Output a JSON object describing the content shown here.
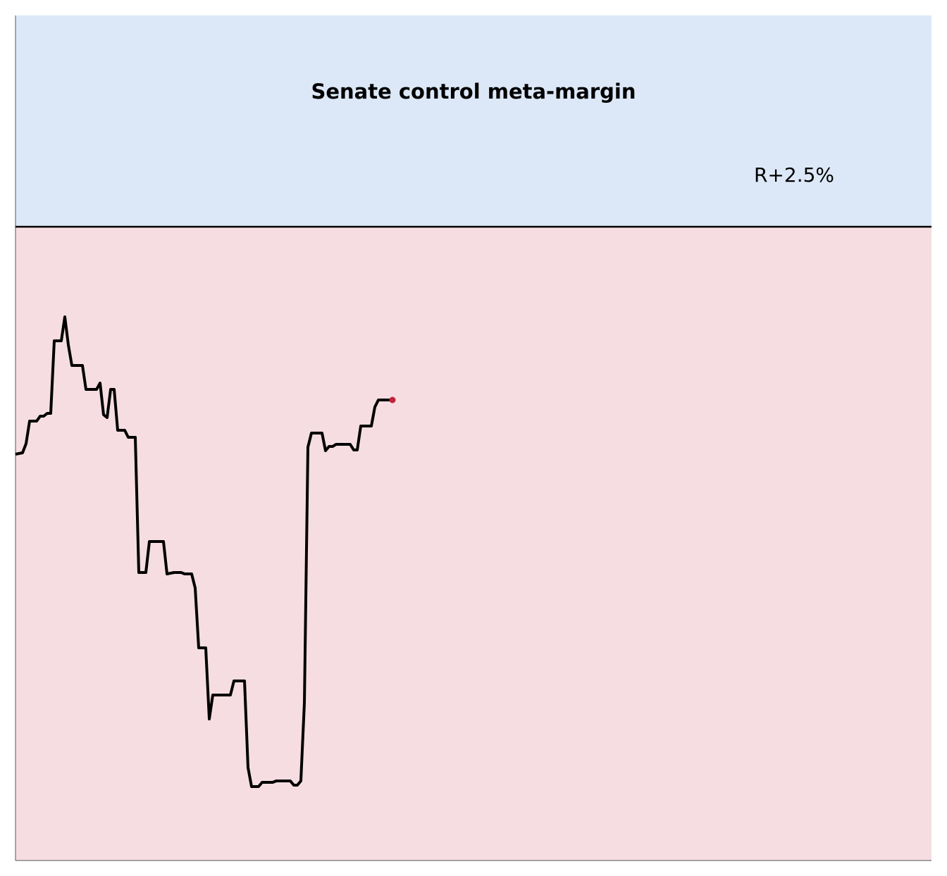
{
  "chart_data": {
    "type": "line",
    "title": "Senate control meta-margin",
    "annotation": "R+2.5%",
    "x": [
      0,
      2,
      3,
      4,
      6,
      7,
      8,
      9,
      10,
      11,
      13,
      14,
      15,
      16,
      19,
      20,
      23,
      24,
      25,
      26,
      27,
      28,
      29,
      31,
      32,
      34,
      35,
      37,
      38,
      42,
      43,
      45,
      47,
      48,
      50,
      51,
      52,
      54,
      55,
      56,
      61,
      62,
      65,
      66,
      67,
      69,
      70,
      73,
      74,
      78,
      79,
      80,
      81,
      82,
      83,
      84,
      87,
      88,
      89,
      90,
      91,
      95,
      96,
      97,
      98,
      101,
      102,
      103,
      107
    ],
    "series": [
      {
        "color": "#000000",
        "values": [
          -3.23,
          -3.21,
          -3.08,
          -2.76,
          -2.76,
          -2.69,
          -2.69,
          -2.65,
          -2.65,
          -1.62,
          -1.62,
          -1.28,
          -1.68,
          -1.97,
          -1.97,
          -2.31,
          -2.31,
          -2.22,
          -2.67,
          -2.71,
          -2.31,
          -2.31,
          -2.89,
          -2.89,
          -2.99,
          -2.99,
          -4.91,
          -4.91,
          -4.47,
          -4.47,
          -4.93,
          -4.91,
          -4.91,
          -4.93,
          -4.93,
          -5.13,
          -5.98,
          -5.98,
          -6.99,
          -6.65,
          -6.65,
          -6.45,
          -6.45,
          -7.68,
          -7.95,
          -7.95,
          -7.89,
          -7.89,
          -7.87,
          -7.87,
          -7.93,
          -7.93,
          -7.87,
          -6.76,
          -3.13,
          -2.93,
          -2.93,
          -3.18,
          -3.12,
          -3.12,
          -3.09,
          -3.09,
          -3.17,
          -3.17,
          -2.83,
          -2.83,
          -2.56,
          -2.46,
          -2.46
        ]
      }
    ],
    "last_point_color": "#c0243a",
    "threshold": 0,
    "above_color": "#dce8f7",
    "below_color": "#f5dde1",
    "xlim": [
      0,
      260
    ],
    "ylim": [
      -9,
      3
    ]
  }
}
